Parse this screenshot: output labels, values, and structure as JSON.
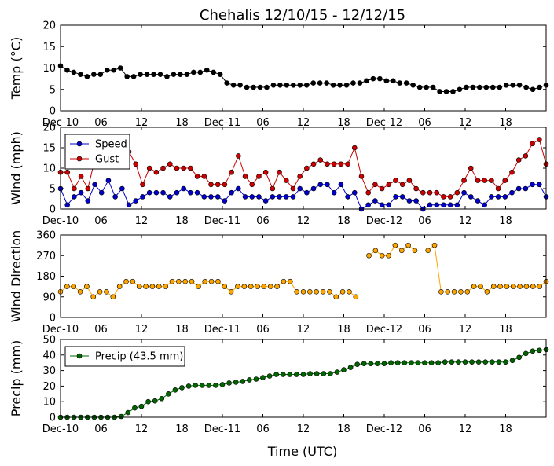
{
  "title": "Chehalis 12/10/15 - 12/12/15",
  "xlabel": "Time (UTC)",
  "x_ticks": [
    "Dec-10",
    "06",
    "12",
    "18",
    "Dec-11",
    "06",
    "12",
    "18",
    "Dec-12",
    "06",
    "12",
    "18"
  ],
  "x_tick_hours": [
    0,
    6,
    12,
    18,
    24,
    30,
    36,
    42,
    48,
    54,
    60,
    66
  ],
  "x_range_hours": [
    0,
    72
  ],
  "chart_data": [
    {
      "type": "line",
      "ylabel": "Temp (°C)",
      "ylim": [
        0,
        20
      ],
      "yticks": [
        0,
        5,
        10,
        15,
        20
      ],
      "legend": null,
      "series": [
        {
          "color": "#000000",
          "values": [
            10.5,
            9.5,
            9,
            8.5,
            8,
            8.5,
            8.5,
            9.5,
            9.5,
            10,
            8,
            8,
            8.5,
            8.5,
            8.5,
            8.5,
            8,
            8.5,
            8.5,
            8.5,
            9,
            9,
            9.5,
            9,
            8.5,
            6.5,
            6,
            6,
            5.5,
            5.5,
            5.5,
            5.5,
            6,
            6,
            6,
            6,
            6,
            6,
            6.5,
            6.5,
            6.5,
            6,
            6,
            6,
            6.5,
            6.5,
            7,
            7.5,
            7.5,
            7,
            7,
            6.5,
            6.5,
            6,
            5.5,
            5.5,
            5.5,
            4.5,
            4.5,
            4.5,
            5,
            5.5,
            5.5,
            5.5,
            5.5,
            5.5,
            5.5,
            6,
            6,
            6,
            5.5,
            5,
            5.5,
            6
          ]
        }
      ]
    },
    {
      "type": "line",
      "ylabel": "Wind (mph)",
      "ylim": [
        0,
        20
      ],
      "yticks": [
        0,
        5,
        10,
        15,
        20
      ],
      "legend": "top-left",
      "series": [
        {
          "name": "Speed",
          "color": "#0000cc",
          "values": [
            5,
            1,
            3,
            4,
            2,
            6,
            4,
            7,
            3,
            5,
            1,
            2,
            3,
            4,
            4,
            4,
            3,
            4,
            5,
            4,
            4,
            3,
            3,
            3,
            2,
            4,
            5,
            3,
            3,
            3,
            2,
            3,
            3,
            3,
            3,
            5,
            4,
            5,
            6,
            6,
            4,
            6,
            3,
            4,
            0,
            1,
            2,
            1,
            1,
            3,
            3,
            2,
            2,
            0,
            1,
            1,
            1,
            1,
            1,
            4,
            3,
            2,
            1,
            3,
            3,
            3,
            4,
            5,
            5,
            6,
            6,
            3
          ]
        },
        {
          "name": "Gust",
          "color": "#cc0000",
          "values": [
            9,
            9,
            5,
            8,
            5,
            12,
            13,
            14,
            14,
            14,
            14,
            11,
            6,
            10,
            9,
            10,
            11,
            10,
            10,
            10,
            8,
            8,
            6,
            6,
            6,
            9,
            13,
            8,
            6,
            8,
            9,
            5,
            9,
            7,
            5,
            8,
            10,
            11,
            12,
            11,
            11,
            11,
            11,
            15,
            8,
            4,
            6,
            5,
            6,
            7,
            6,
            7,
            5,
            4,
            4,
            4,
            3,
            3,
            4,
            7,
            10,
            7,
            7,
            7,
            5,
            7,
            9,
            12,
            13,
            16,
            17,
            11
          ]
        }
      ]
    },
    {
      "type": "line",
      "ylabel": "Wind Direction",
      "ylim": [
        0,
        360
      ],
      "yticks": [
        0,
        90,
        180,
        270,
        360
      ],
      "legend": null,
      "series": [
        {
          "color": "#ffa500",
          "values": [
            112,
            135,
            135,
            112,
            135,
            90,
            112,
            112,
            90,
            135,
            157,
            157,
            135,
            135,
            135,
            135,
            135,
            157,
            157,
            157,
            157,
            135,
            157,
            157,
            157,
            135,
            112,
            135,
            135,
            135,
            135,
            135,
            135,
            135,
            157,
            157,
            112,
            112,
            112,
            112,
            112,
            112,
            90,
            112,
            112,
            90,
            null,
            270,
            292,
            270,
            270,
            315,
            292,
            315,
            292,
            null,
            292,
            315,
            112,
            112,
            112,
            112,
            112,
            135,
            135,
            112,
            135,
            135,
            135,
            135,
            135,
            135,
            135,
            135,
            157
          ]
        }
      ]
    },
    {
      "type": "line",
      "ylabel": "Precip (mm)",
      "ylim": [
        0,
        50
      ],
      "yticks": [
        0,
        10,
        20,
        30,
        40,
        50
      ],
      "legend": "top-left",
      "series": [
        {
          "name": "Precip (43.5 mm)",
          "color": "#006400",
          "values": [
            0,
            0,
            0,
            0,
            0,
            0,
            0,
            0,
            0,
            0.5,
            3,
            6,
            7,
            10,
            10.5,
            12,
            15,
            17.5,
            19,
            20,
            20.5,
            20.5,
            20.5,
            20.5,
            21,
            22,
            22.5,
            23,
            24,
            24.5,
            25.5,
            26.5,
            27.5,
            27.5,
            27.5,
            27.5,
            27.5,
            28,
            28,
            28,
            28,
            29,
            30.5,
            32,
            34,
            34.5,
            34.5,
            34.5,
            34.5,
            35,
            35,
            35,
            35,
            35,
            35,
            35,
            35,
            35.5,
            35.5,
            35.5,
            35.5,
            35.5,
            35.5,
            35.5,
            35.5,
            35.5,
            35.5,
            36.5,
            38.5,
            41,
            42.5,
            43,
            43.5
          ]
        }
      ]
    }
  ]
}
